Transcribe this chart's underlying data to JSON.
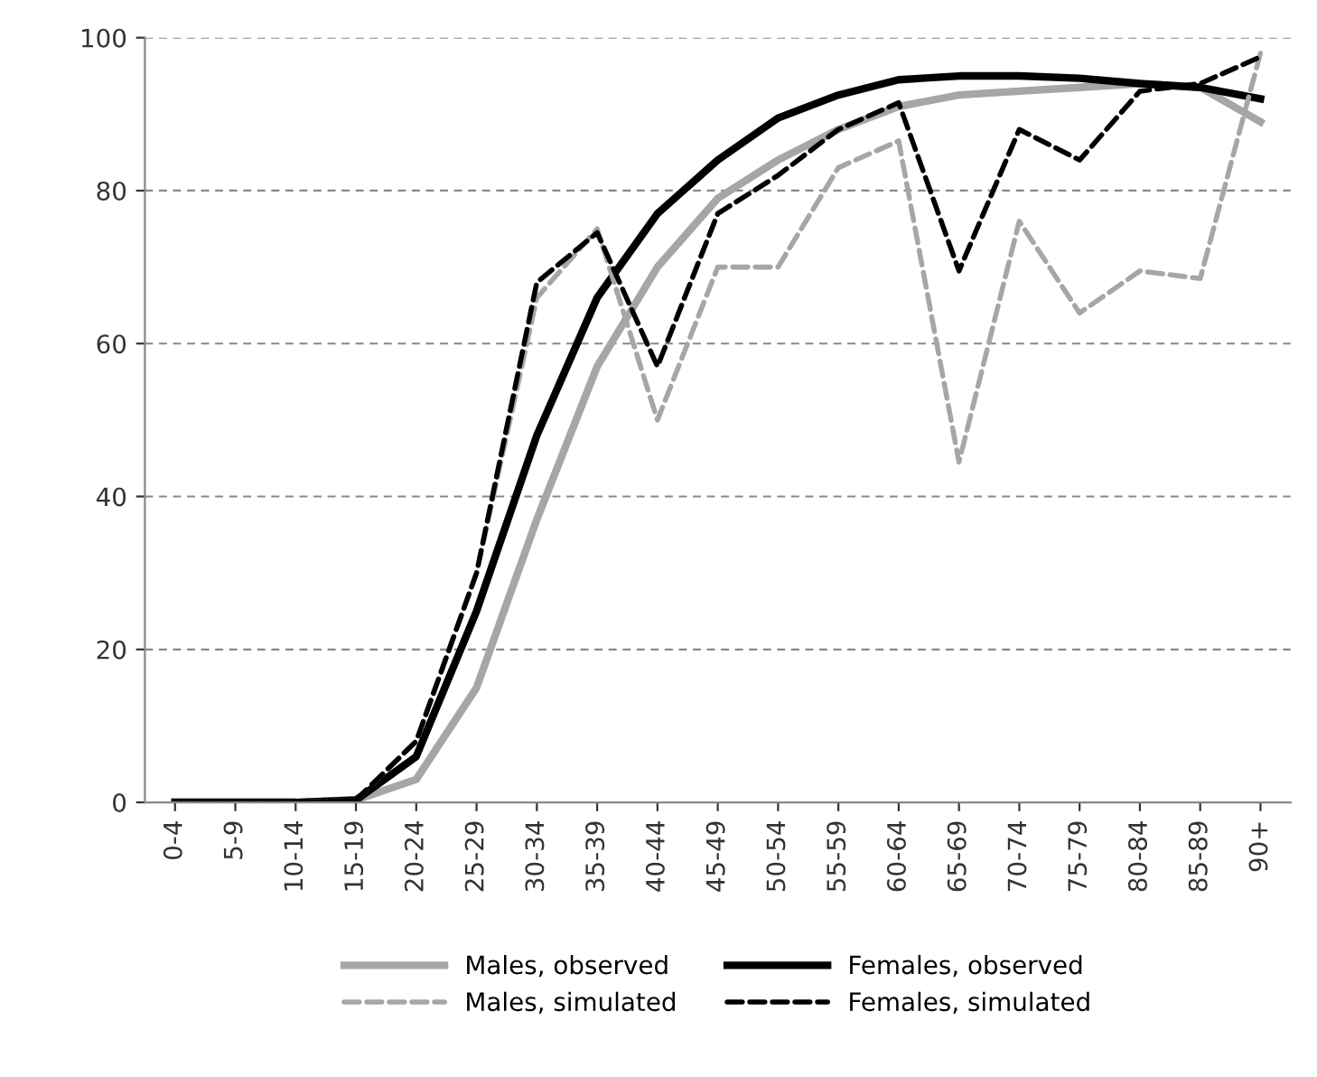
{
  "chart_data": {
    "type": "line",
    "categories": [
      "0-4",
      "5-9",
      "10-14",
      "15-19",
      "20-24",
      "25-29",
      "30-34",
      "35-39",
      "40-44",
      "45-49",
      "50-54",
      "55-59",
      "60-64",
      "65-69",
      "70-74",
      "75-79",
      "80-84",
      "85-89",
      "90+"
    ],
    "series": [
      {
        "name": "Males, observed",
        "color": "#a6a6a6",
        "line_style": "solid",
        "values": [
          0,
          0,
          0,
          0.3,
          3,
          15,
          37,
          57,
          70,
          79,
          84,
          88,
          91,
          92.5,
          93,
          93.5,
          94,
          93.5,
          89
        ]
      },
      {
        "name": "Females, observed",
        "color": "#000000",
        "line_style": "solid",
        "values": [
          0,
          0,
          0,
          0.3,
          6,
          25,
          48,
          66,
          77,
          84,
          89.5,
          92.5,
          94.5,
          95,
          95,
          94.7,
          94,
          93.5,
          92
        ]
      },
      {
        "name": "Males, simulated",
        "color": "#a6a6a6",
        "line_style": "dashed",
        "values": [
          0,
          0,
          0,
          0.3,
          8,
          30,
          66,
          75,
          50,
          70,
          70,
          83,
          86.5,
          44.5,
          76,
          64,
          69.5,
          68.5,
          98
        ]
      },
      {
        "name": "Females, simulated",
        "color": "#000000",
        "line_style": "dashed",
        "values": [
          0,
          0,
          0,
          0.3,
          8,
          30,
          68,
          74.5,
          57,
          77,
          82,
          88,
          91.5,
          69.5,
          88,
          84,
          93,
          94,
          97.5
        ]
      }
    ],
    "ylim": [
      0,
      100
    ],
    "yticks": [
      0,
      20,
      40,
      60,
      80,
      100
    ],
    "grid": "y",
    "legend": "bottom"
  }
}
